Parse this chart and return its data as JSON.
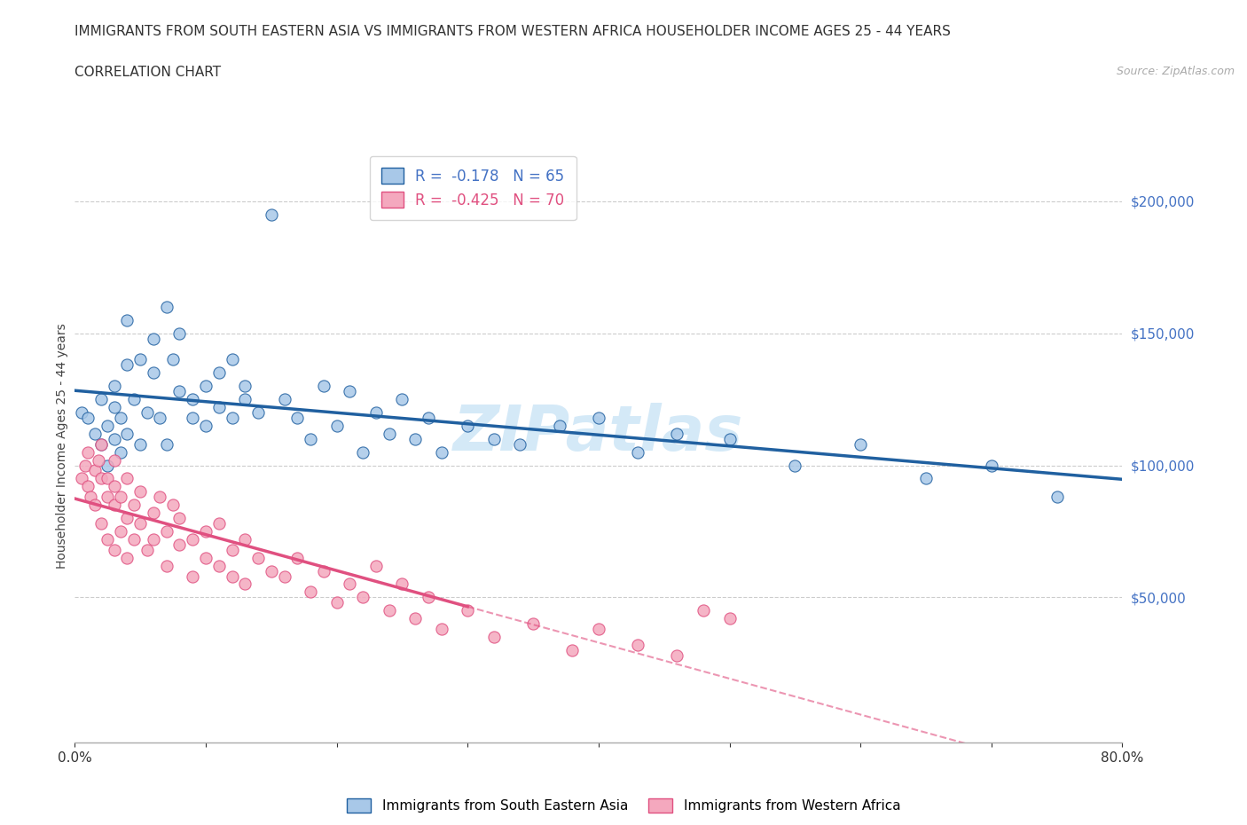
{
  "title_line1": "IMMIGRANTS FROM SOUTH EASTERN ASIA VS IMMIGRANTS FROM WESTERN AFRICA HOUSEHOLDER INCOME AGES 25 - 44 YEARS",
  "title_line2": "CORRELATION CHART",
  "source": "Source: ZipAtlas.com",
  "ylabel": "Householder Income Ages 25 - 44 years",
  "watermark": "ZIPatlas",
  "blue_R": -0.178,
  "blue_N": 65,
  "pink_R": -0.425,
  "pink_N": 70,
  "blue_color": "#a8c8e8",
  "pink_color": "#f4a8be",
  "blue_line_color": "#2060a0",
  "pink_line_color": "#e05080",
  "axis_label_color": "#4472c4",
  "xlim": [
    0.0,
    0.8
  ],
  "ylim": [
    -5000,
    220000
  ],
  "legend_blue_label": "Immigrants from South Eastern Asia",
  "legend_pink_label": "Immigrants from Western Africa",
  "blue_scatter_x": [
    0.005,
    0.01,
    0.015,
    0.02,
    0.02,
    0.025,
    0.025,
    0.03,
    0.03,
    0.03,
    0.035,
    0.035,
    0.04,
    0.04,
    0.04,
    0.045,
    0.05,
    0.05,
    0.055,
    0.06,
    0.06,
    0.065,
    0.07,
    0.07,
    0.075,
    0.08,
    0.08,
    0.09,
    0.09,
    0.1,
    0.1,
    0.11,
    0.11,
    0.12,
    0.12,
    0.13,
    0.13,
    0.14,
    0.15,
    0.16,
    0.17,
    0.18,
    0.19,
    0.2,
    0.21,
    0.22,
    0.23,
    0.24,
    0.25,
    0.26,
    0.27,
    0.28,
    0.3,
    0.32,
    0.34,
    0.37,
    0.4,
    0.43,
    0.46,
    0.5,
    0.55,
    0.6,
    0.65,
    0.7,
    0.75
  ],
  "blue_scatter_y": [
    120000,
    118000,
    112000,
    125000,
    108000,
    115000,
    100000,
    130000,
    110000,
    122000,
    105000,
    118000,
    138000,
    155000,
    112000,
    125000,
    140000,
    108000,
    120000,
    148000,
    135000,
    118000,
    160000,
    108000,
    140000,
    150000,
    128000,
    125000,
    118000,
    130000,
    115000,
    135000,
    122000,
    140000,
    118000,
    125000,
    130000,
    120000,
    195000,
    125000,
    118000,
    110000,
    130000,
    115000,
    128000,
    105000,
    120000,
    112000,
    125000,
    110000,
    118000,
    105000,
    115000,
    110000,
    108000,
    115000,
    118000,
    105000,
    112000,
    110000,
    100000,
    108000,
    95000,
    100000,
    88000
  ],
  "pink_scatter_x": [
    0.005,
    0.008,
    0.01,
    0.01,
    0.012,
    0.015,
    0.015,
    0.018,
    0.02,
    0.02,
    0.02,
    0.025,
    0.025,
    0.025,
    0.03,
    0.03,
    0.03,
    0.03,
    0.035,
    0.035,
    0.04,
    0.04,
    0.04,
    0.045,
    0.045,
    0.05,
    0.05,
    0.055,
    0.06,
    0.06,
    0.065,
    0.07,
    0.07,
    0.075,
    0.08,
    0.08,
    0.09,
    0.09,
    0.1,
    0.1,
    0.11,
    0.11,
    0.12,
    0.12,
    0.13,
    0.13,
    0.14,
    0.15,
    0.16,
    0.17,
    0.18,
    0.19,
    0.2,
    0.21,
    0.22,
    0.23,
    0.24,
    0.25,
    0.26,
    0.27,
    0.28,
    0.3,
    0.32,
    0.35,
    0.38,
    0.4,
    0.43,
    0.46,
    0.48,
    0.5
  ],
  "pink_scatter_y": [
    95000,
    100000,
    92000,
    105000,
    88000,
    98000,
    85000,
    102000,
    95000,
    78000,
    108000,
    88000,
    72000,
    95000,
    85000,
    102000,
    68000,
    92000,
    88000,
    75000,
    80000,
    95000,
    65000,
    85000,
    72000,
    78000,
    90000,
    68000,
    82000,
    72000,
    88000,
    75000,
    62000,
    85000,
    70000,
    80000,
    58000,
    72000,
    75000,
    65000,
    78000,
    62000,
    68000,
    58000,
    72000,
    55000,
    65000,
    60000,
    58000,
    65000,
    52000,
    60000,
    48000,
    55000,
    50000,
    62000,
    45000,
    55000,
    42000,
    50000,
    38000,
    45000,
    35000,
    40000,
    30000,
    38000,
    32000,
    28000,
    45000,
    42000
  ],
  "background_color": "#ffffff",
  "grid_color": "#cccccc"
}
